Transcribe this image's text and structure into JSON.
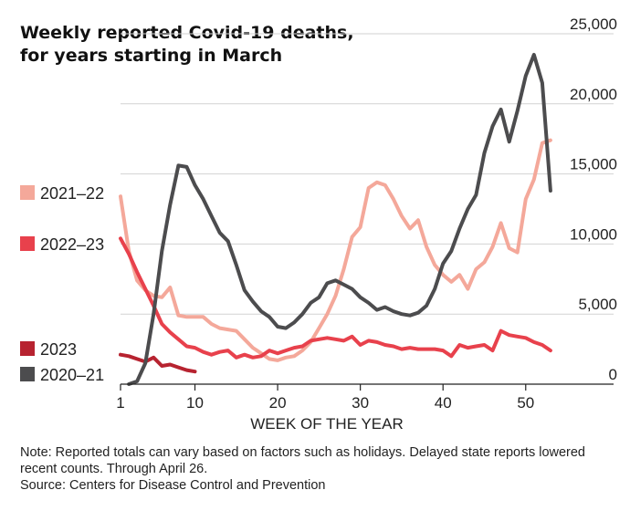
{
  "title_lines": [
    "Weekly reported Covid-19 deaths,",
    "for years starting in March"
  ],
  "note": "Note: Reported totals can vary based on factors such as holidays. Delayed state reports lowered recent counts. Through April 26.",
  "source": "Source: Centers for Disease Control and Prevention",
  "chart_data": {
    "type": "line",
    "title": "Weekly reported Covid-19 deaths, for years starting in March",
    "xlabel": "WEEK OF THE YEAR",
    "ylabel": "",
    "xlim": [
      1,
      54
    ],
    "ylim": [
      0,
      25000
    ],
    "x_ticks": [
      1,
      10,
      20,
      30,
      40,
      50
    ],
    "x_tick_labels": [
      "1",
      "10",
      "20",
      "30",
      "40",
      "50"
    ],
    "y_ticks": [
      0,
      5000,
      10000,
      15000,
      20000,
      25000
    ],
    "y_tick_labels": [
      "0",
      "5,000",
      "10,000",
      "15,000",
      "20,000",
      "25,000"
    ],
    "y_axis_side": "right",
    "grid": "horizontal",
    "legend": "left, labels stacked beside y-axis",
    "series": [
      {
        "name": "2021–22",
        "color": "#f4a89a",
        "x": [
          1,
          2,
          3,
          4,
          5,
          6,
          7,
          8,
          9,
          10,
          11,
          12,
          13,
          14,
          15,
          16,
          17,
          18,
          19,
          20,
          21,
          22,
          23,
          24,
          25,
          26,
          27,
          28,
          29,
          30,
          31,
          32,
          33,
          34,
          35,
          36,
          37,
          38,
          39,
          40,
          41,
          42,
          43,
          44,
          45,
          46,
          47,
          48,
          49,
          50,
          51,
          52,
          53
        ],
        "values": [
          13400,
          9500,
          7400,
          6700,
          6300,
          6200,
          6900,
          4900,
          4800,
          4800,
          4800,
          4300,
          4000,
          3900,
          3800,
          3200,
          2600,
          2200,
          1800,
          1700,
          1900,
          2000,
          2400,
          3000,
          4000,
          5000,
          6300,
          8200,
          10500,
          11200,
          14000,
          14400,
          14200,
          13200,
          12000,
          11100,
          11700,
          9800,
          8500,
          7800,
          7300,
          7800,
          6800,
          8200,
          8700,
          9800,
          11500,
          9700,
          9400,
          13200,
          14600,
          17200,
          17400
        ]
      },
      {
        "name": "2022–23",
        "color": "#e8414c",
        "x": [
          1,
          2,
          3,
          4,
          5,
          6,
          7,
          8,
          9,
          10,
          11,
          12,
          13,
          14,
          15,
          16,
          17,
          18,
          19,
          20,
          21,
          22,
          23,
          24,
          25,
          26,
          27,
          28,
          29,
          30,
          31,
          32,
          33,
          34,
          35,
          36,
          37,
          38,
          39,
          40,
          41,
          42,
          43,
          44,
          45,
          46,
          47,
          48,
          49,
          50,
          51,
          52,
          53
        ],
        "values": [
          10400,
          9300,
          8000,
          6800,
          5600,
          4300,
          3700,
          3200,
          2700,
          2600,
          2300,
          2100,
          2300,
          2400,
          1900,
          2100,
          1900,
          2000,
          2400,
          2200,
          2400,
          2600,
          2700,
          3100,
          3200,
          3300,
          3200,
          3100,
          3400,
          2800,
          3100,
          3000,
          2800,
          2700,
          2500,
          2600,
          2500,
          2500,
          2500,
          2400,
          2000,
          2800,
          2600,
          2700,
          2800,
          2400,
          3800,
          3500,
          3400,
          3300,
          3000,
          2800,
          2400
        ]
      },
      {
        "name": "2023",
        "color": "#b72330",
        "x": [
          1,
          2,
          3,
          4,
          5,
          6,
          7,
          8,
          9,
          10
        ],
        "values": [
          2100,
          2000,
          1800,
          1600,
          1900,
          1300,
          1400,
          1200,
          1000,
          900
        ]
      },
      {
        "name": "2020–21",
        "color": "#4c4c4e",
        "x": [
          2,
          3,
          4,
          5,
          6,
          7,
          8,
          9,
          10,
          11,
          12,
          13,
          14,
          15,
          16,
          17,
          18,
          19,
          20,
          21,
          22,
          23,
          24,
          25,
          26,
          27,
          28,
          29,
          30,
          31,
          32,
          33,
          34,
          35,
          36,
          37,
          38,
          39,
          40,
          41,
          42,
          43,
          44,
          45,
          46,
          47,
          48,
          49,
          50,
          51,
          52,
          53
        ],
        "values": [
          0,
          200,
          1500,
          5000,
          9500,
          12800,
          15600,
          15500,
          14200,
          13200,
          12000,
          10800,
          10200,
          8500,
          6700,
          5900,
          5200,
          4800,
          4100,
          4000,
          4400,
          5000,
          5800,
          6200,
          7200,
          7400,
          7100,
          6800,
          6200,
          5800,
          5300,
          5500,
          5200,
          5000,
          4900,
          5100,
          5600,
          6800,
          8600,
          9500,
          11100,
          12500,
          13500,
          16500,
          18400,
          19600,
          17300,
          19500,
          22000,
          23500,
          21500,
          13800
        ]
      }
    ]
  }
}
